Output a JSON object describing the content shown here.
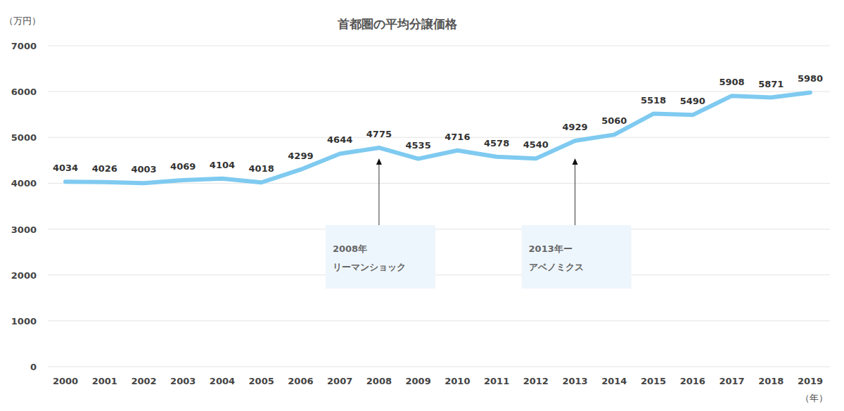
{
  "chart_data": {
    "type": "line",
    "title": "首都圏の平均分譲価格",
    "y_label": "（万円）",
    "x_label": "（年）",
    "categories": [
      "2000",
      "2001",
      "2002",
      "2003",
      "2004",
      "2005",
      "2006",
      "2007",
      "2008",
      "2009",
      "2010",
      "2011",
      "2012",
      "2013",
      "2014",
      "2015",
      "2016",
      "2017",
      "2018",
      "2019"
    ],
    "values": [
      4034,
      4026,
      4003,
      4069,
      4104,
      4018,
      4299,
      4644,
      4775,
      4535,
      4716,
      4578,
      4540,
      4929,
      5060,
      5518,
      5490,
      5908,
      5871,
      5980
    ],
    "color": "#7fcaf0",
    "ylim": [
      0,
      7000
    ],
    "yticks": [
      0,
      1000,
      2000,
      3000,
      4000,
      5000,
      6000,
      7000
    ],
    "grid": true,
    "data_labels": true,
    "annotations": [
      {
        "category": "2008",
        "lines": [
          "2008年",
          "リーマンショック"
        ]
      },
      {
        "category": "2013",
        "lines": [
          "2013年ー",
          "アベノミクス"
        ]
      }
    ]
  }
}
